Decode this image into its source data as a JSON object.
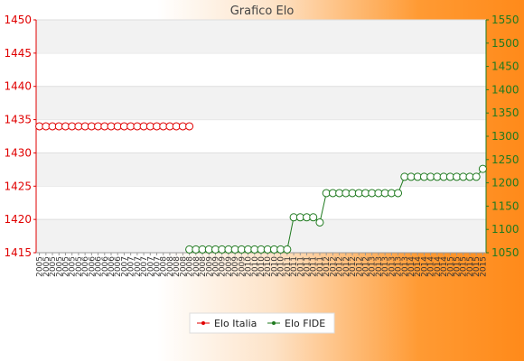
{
  "chart_data": {
    "type": "line",
    "title": "Grafico Elo",
    "xlabel": "",
    "y_left_label": "",
    "y_right_label": "",
    "y_left_range": [
      1415,
      1450
    ],
    "y_left_ticks": [
      1415,
      1420,
      1425,
      1430,
      1435,
      1440,
      1445,
      1450
    ],
    "y_right_range": [
      1050,
      1550
    ],
    "y_right_ticks": [
      1050,
      1100,
      1150,
      1200,
      1250,
      1300,
      1350,
      1400,
      1450,
      1500,
      1550
    ],
    "legend_position": "bottom-center",
    "grid": "horizontal bands",
    "x_tick_count": 69,
    "series": [
      {
        "name": "Elo Italia",
        "axis": "left",
        "color": "#e00000",
        "values": [
          1434,
          1434,
          1434,
          1434,
          1434,
          1434,
          1434,
          1434,
          1434,
          1434,
          1434,
          1434,
          1434,
          1434,
          1434,
          1434,
          1434,
          1434,
          1434,
          1434,
          1434,
          1434,
          1434,
          1434,
          null,
          null,
          null,
          null,
          null,
          null,
          null,
          null,
          null,
          null,
          null,
          null,
          null,
          null,
          null,
          null,
          null,
          null,
          null,
          null,
          null,
          null,
          null,
          null,
          null,
          null,
          null,
          null,
          null,
          null,
          null,
          null,
          null,
          null,
          null,
          null,
          null,
          null,
          null,
          null,
          null,
          null,
          null,
          null,
          null
        ]
      },
      {
        "name": "Elo FIDE",
        "axis": "right",
        "color": "#1f7a1f",
        "values": [
          null,
          null,
          null,
          null,
          null,
          null,
          null,
          null,
          null,
          null,
          null,
          null,
          null,
          null,
          null,
          null,
          null,
          null,
          null,
          null,
          null,
          null,
          null,
          1057,
          1057,
          1057,
          1057,
          1057,
          1057,
          1057,
          1057,
          1057,
          1057,
          1057,
          1057,
          1057,
          1057,
          1057,
          1057,
          1126,
          1126,
          1126,
          1126,
          1115,
          1178,
          1178,
          1178,
          1178,
          1178,
          1178,
          1178,
          1178,
          1178,
          1178,
          1178,
          1178,
          1213,
          1213,
          1213,
          1213,
          1213,
          1213,
          1213,
          1213,
          1213,
          1213,
          1213,
          1213,
          1230
        ]
      }
    ]
  },
  "x_labels_text": "20155 200054 20005 20052 2006 2006 2007 2007 2008 2008 2009 2009 2010 2010 2011 2011 2012 2012 2013 2013 2014 2014 2015 2015"
}
